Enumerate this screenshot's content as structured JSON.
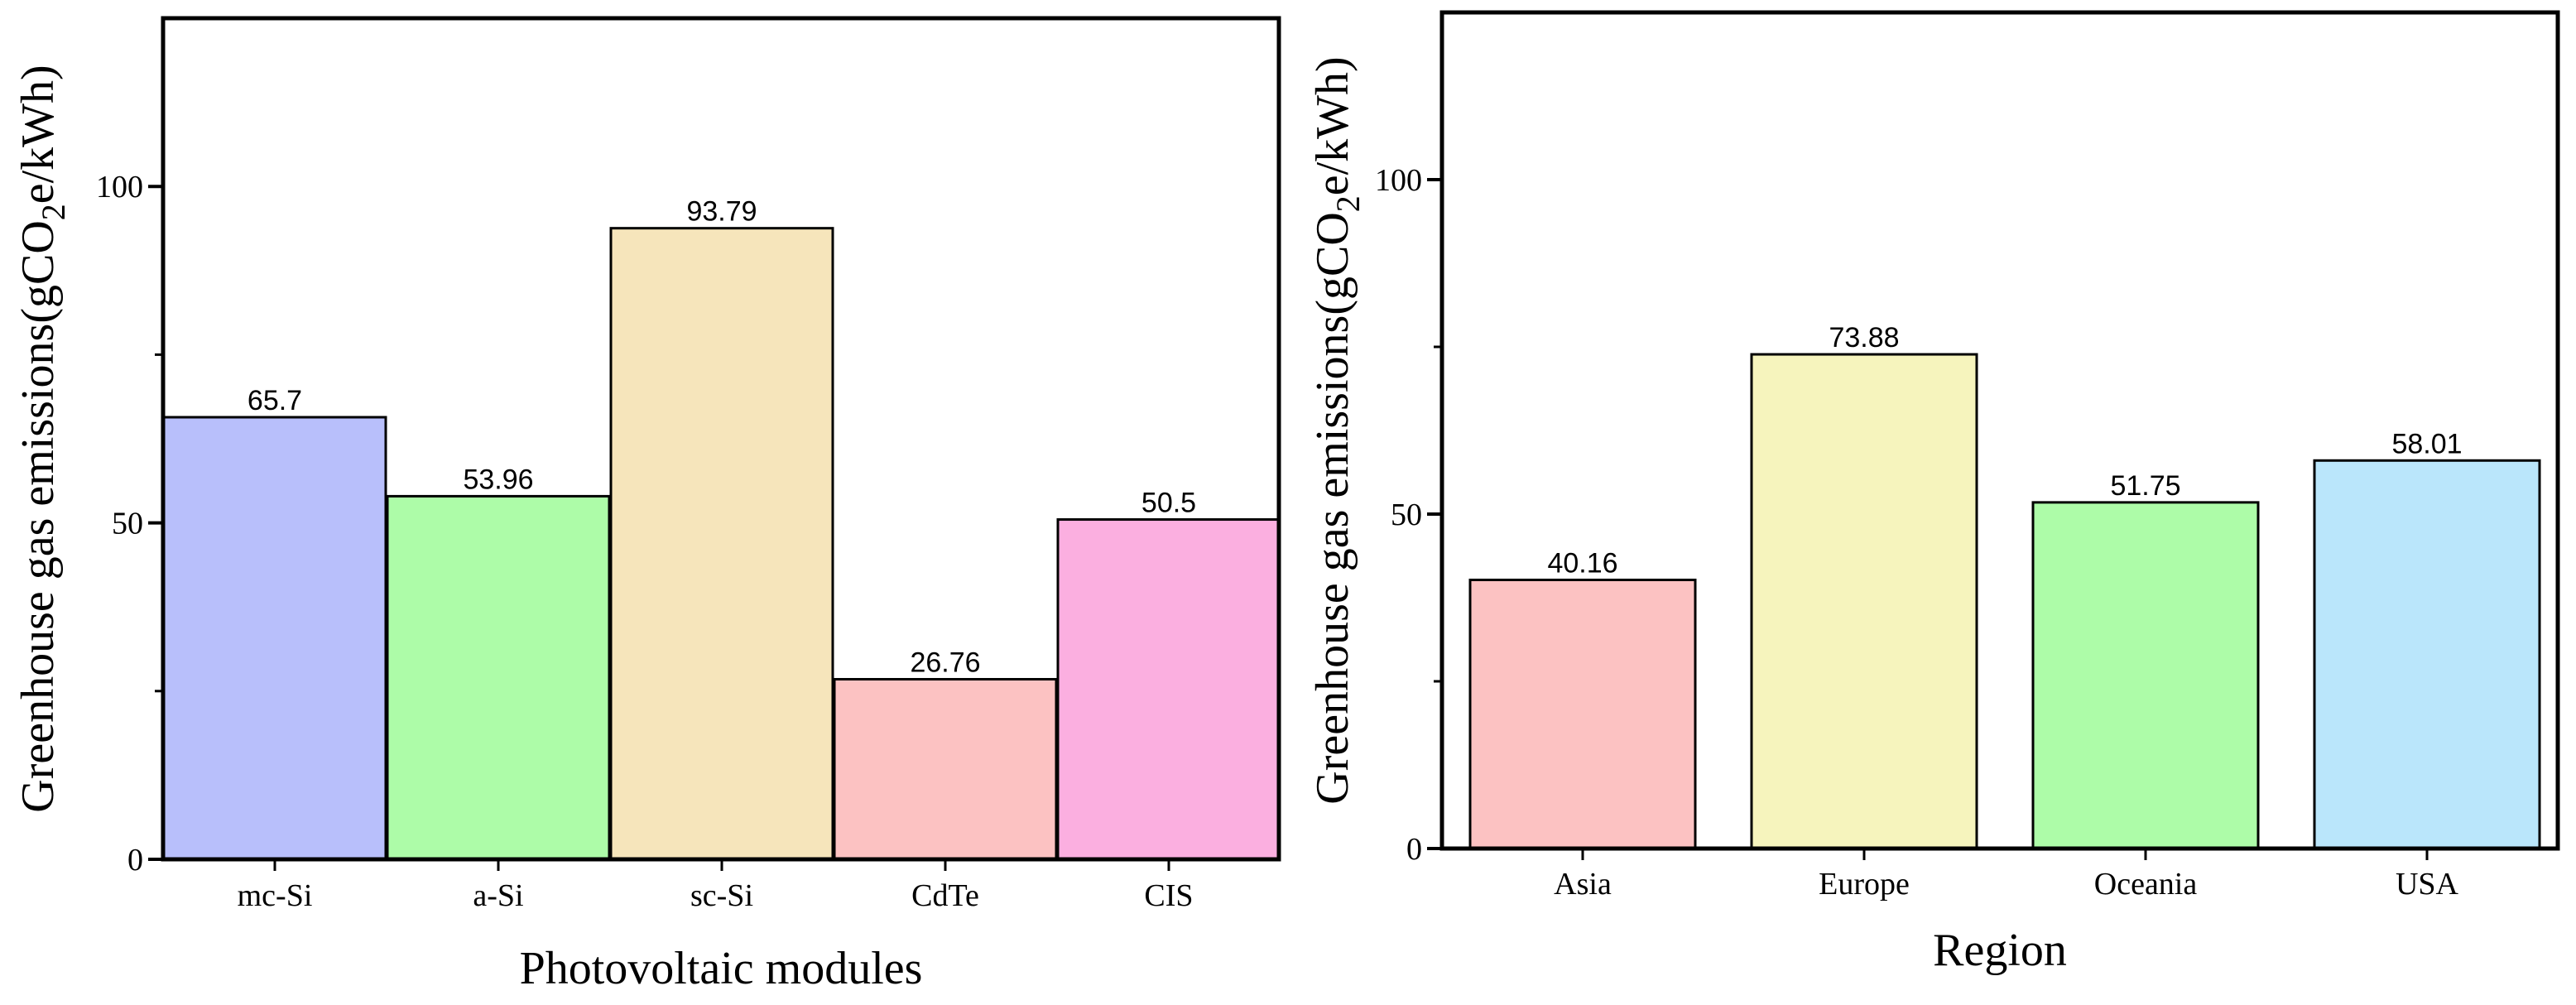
{
  "chart_data": [
    {
      "type": "bar",
      "categories": [
        "mc-Si",
        "a-Si",
        "sc-Si",
        "CdTe",
        "CIS"
      ],
      "values": [
        65.7,
        53.96,
        93.79,
        26.76,
        50.5
      ],
      "value_labels": [
        "65.7",
        "53.96",
        "93.79",
        "26.76",
        "50.5"
      ],
      "colors": [
        "#b8bffb",
        "#adfca8",
        "#f6e5bb",
        "#fcc2c2",
        "#fbafe0"
      ],
      "xlabel": "Photovoltaic modules",
      "ylabel": "Greenhouse gas emissions(gCO",
      "ylabel_sub": "2",
      "ylabel_tail": "e/kWh)",
      "ylim": [
        0,
        125
      ],
      "major_ticks": [
        0,
        50,
        100
      ],
      "tick_labels": [
        "0",
        "50",
        "100"
      ],
      "minor_ticks": [
        25,
        75
      ],
      "grid": false
    },
    {
      "type": "bar",
      "categories": [
        "Asia",
        "Europe",
        "Oceania",
        "USA"
      ],
      "values": [
        40.16,
        73.88,
        51.75,
        58.01
      ],
      "value_labels": [
        "40.16",
        "73.88",
        "51.75",
        "58.01"
      ],
      "colors": [
        "#fcc2c2",
        "#f6f4bd",
        "#adfca8",
        "#bae6fb"
      ],
      "xlabel": "Region",
      "ylabel": "Greenhouse gas emissions(gCO",
      "ylabel_sub": "2",
      "ylabel_tail": "e/kWh)",
      "ylim": [
        0,
        125
      ],
      "major_ticks": [
        0,
        50,
        100
      ],
      "tick_labels": [
        "0",
        "50",
        "100"
      ],
      "minor_ticks": [
        25,
        75
      ],
      "grid": false
    }
  ]
}
